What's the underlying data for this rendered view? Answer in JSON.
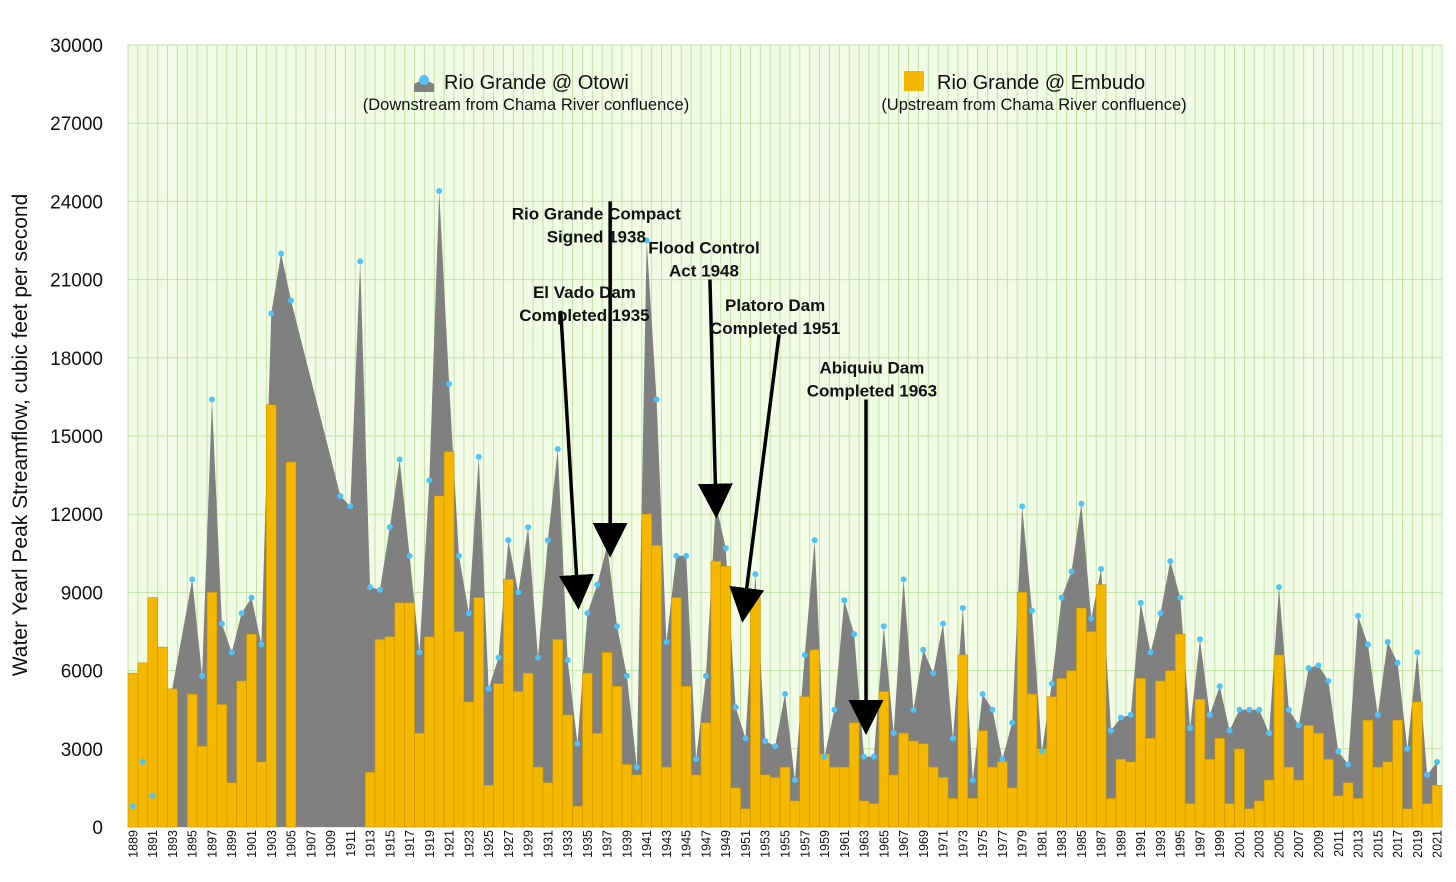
{
  "chart_data": {
    "type": "bar",
    "ylabel": "Water Yearl Peak Streamflow, cubic feet per second",
    "ylim": [
      0,
      30000
    ],
    "yticks": [
      0,
      3000,
      6000,
      9000,
      12000,
      15000,
      18000,
      21000,
      24000,
      27000,
      30000
    ],
    "x_range": [
      1889,
      2021
    ],
    "x_tick_labels": [
      "1889",
      "1891",
      "1893",
      "1895",
      "1897",
      "1899",
      "1901",
      "1903",
      "1905",
      "1907",
      "1909",
      "1911",
      "1913",
      "1915",
      "1917",
      "1919",
      "1921",
      "1923",
      "1925",
      "1927",
      "1929",
      "1931",
      "1933",
      "1935",
      "1937",
      "1939",
      "1941",
      "1943",
      "1945",
      "1947",
      "1949",
      "1951",
      "1953",
      "1955",
      "1957",
      "1959",
      "1961",
      "1963",
      "1965",
      "1967",
      "1969",
      "1971",
      "1973",
      "1975",
      "1977",
      "1979",
      "1981",
      "1983",
      "1985",
      "1987",
      "1989",
      "1991",
      "1993",
      "1995",
      "1997",
      "1999",
      "2001",
      "2003",
      "2005",
      "2007",
      "2009",
      "2011",
      "2013",
      "2015",
      "2017",
      "2019",
      "2021"
    ],
    "grid": "vertical lines at every year",
    "background": "light green",
    "legend_placement": "top",
    "series": [
      {
        "name": "Rio Grande @ Otowi",
        "subtitle": "(Downstream from Chama River confluence)",
        "type": "area",
        "color": "#808080",
        "marker_color": "#4fc3f7",
        "points": [
          [
            1889,
            800
          ],
          [
            1890,
            2500
          ],
          [
            1891,
            1200
          ],
          [
            1895,
            9500
          ],
          [
            1896,
            5800
          ],
          [
            1897,
            16400
          ],
          [
            1898,
            7800
          ],
          [
            1899,
            6700
          ],
          [
            1900,
            8200
          ],
          [
            1901,
            8800
          ],
          [
            1902,
            7000
          ],
          [
            1903,
            19700
          ],
          [
            1904,
            22000
          ],
          [
            1905,
            20200
          ],
          [
            1910,
            12700
          ],
          [
            1911,
            12300
          ],
          [
            1912,
            21700
          ],
          [
            1913,
            9200
          ],
          [
            1914,
            9100
          ],
          [
            1915,
            11500
          ],
          [
            1916,
            14100
          ],
          [
            1917,
            10400
          ],
          [
            1918,
            6700
          ],
          [
            1919,
            13300
          ],
          [
            1920,
            24400
          ],
          [
            1921,
            17000
          ],
          [
            1922,
            10400
          ],
          [
            1923,
            8200
          ],
          [
            1924,
            14200
          ],
          [
            1925,
            5300
          ],
          [
            1926,
            6500
          ],
          [
            1927,
            11000
          ],
          [
            1928,
            9000
          ],
          [
            1929,
            11500
          ],
          [
            1930,
            6500
          ],
          [
            1931,
            11000
          ],
          [
            1932,
            14500
          ],
          [
            1933,
            6400
          ],
          [
            1934,
            3200
          ],
          [
            1935,
            8200
          ],
          [
            1936,
            9300
          ],
          [
            1937,
            10800
          ],
          [
            1938,
            7700
          ],
          [
            1939,
            5800
          ],
          [
            1940,
            2300
          ],
          [
            1941,
            22500
          ],
          [
            1942,
            16400
          ],
          [
            1943,
            7100
          ],
          [
            1944,
            10400
          ],
          [
            1945,
            10400
          ],
          [
            1946,
            2600
          ],
          [
            1947,
            5800
          ],
          [
            1948,
            12400
          ],
          [
            1949,
            10700
          ],
          [
            1950,
            4600
          ],
          [
            1951,
            3400
          ],
          [
            1952,
            9700
          ],
          [
            1953,
            3300
          ],
          [
            1954,
            3100
          ],
          [
            1955,
            5100
          ],
          [
            1956,
            1800
          ],
          [
            1957,
            6600
          ],
          [
            1958,
            11000
          ],
          [
            1959,
            2700
          ],
          [
            1960,
            4500
          ],
          [
            1961,
            8700
          ],
          [
            1962,
            7400
          ],
          [
            1963,
            2700
          ],
          [
            1964,
            2700
          ],
          [
            1965,
            7700
          ],
          [
            1966,
            3600
          ],
          [
            1967,
            9500
          ],
          [
            1968,
            4500
          ],
          [
            1969,
            6800
          ],
          [
            1970,
            5900
          ],
          [
            1971,
            7800
          ],
          [
            1972,
            3400
          ],
          [
            1973,
            8400
          ],
          [
            1974,
            1800
          ],
          [
            1975,
            5100
          ],
          [
            1976,
            4500
          ],
          [
            1977,
            2600
          ],
          [
            1978,
            4000
          ],
          [
            1979,
            12300
          ],
          [
            1980,
            8300
          ],
          [
            1981,
            2900
          ],
          [
            1982,
            5500
          ],
          [
            1983,
            8800
          ],
          [
            1984,
            9800
          ],
          [
            1985,
            12400
          ],
          [
            1986,
            8000
          ],
          [
            1987,
            9900
          ],
          [
            1988,
            3700
          ],
          [
            1989,
            4200
          ],
          [
            1990,
            4300
          ],
          [
            1991,
            8600
          ],
          [
            1992,
            6700
          ],
          [
            1993,
            8200
          ],
          [
            1994,
            10200
          ],
          [
            1995,
            8800
          ],
          [
            1996,
            3800
          ],
          [
            1997,
            7200
          ],
          [
            1998,
            4300
          ],
          [
            1999,
            5400
          ],
          [
            2000,
            3700
          ],
          [
            2001,
            4500
          ],
          [
            2002,
            4500
          ],
          [
            2003,
            4500
          ],
          [
            2004,
            3600
          ],
          [
            2005,
            9200
          ],
          [
            2006,
            4500
          ],
          [
            2007,
            3900
          ],
          [
            2008,
            6100
          ],
          [
            2009,
            6200
          ],
          [
            2010,
            5600
          ],
          [
            2011,
            2900
          ],
          [
            2012,
            2400
          ],
          [
            2013,
            8100
          ],
          [
            2014,
            7000
          ],
          [
            2015,
            4300
          ],
          [
            2016,
            7100
          ],
          [
            2017,
            6300
          ],
          [
            2018,
            3000
          ],
          [
            2019,
            6700
          ],
          [
            2020,
            2000
          ],
          [
            2021,
            2500
          ]
        ]
      },
      {
        "name": "Rio Grande @ Embudo",
        "subtitle": "(Upstream from Chama River confluence)",
        "type": "bar",
        "color": "#f5b800",
        "points": [
          [
            1889,
            5900
          ],
          [
            1890,
            6300
          ],
          [
            1891,
            8800
          ],
          [
            1892,
            6900
          ],
          [
            1893,
            5300
          ],
          [
            1895,
            5100
          ],
          [
            1896,
            3100
          ],
          [
            1897,
            9000
          ],
          [
            1898,
            4700
          ],
          [
            1899,
            1700
          ],
          [
            1900,
            5600
          ],
          [
            1901,
            7400
          ],
          [
            1902,
            2500
          ],
          [
            1903,
            16200
          ],
          [
            1905,
            14000
          ],
          [
            1913,
            2100
          ],
          [
            1914,
            7200
          ],
          [
            1915,
            7300
          ],
          [
            1916,
            8600
          ],
          [
            1917,
            8600
          ],
          [
            1918,
            3600
          ],
          [
            1919,
            7300
          ],
          [
            1920,
            12700
          ],
          [
            1921,
            14400
          ],
          [
            1922,
            7500
          ],
          [
            1923,
            4800
          ],
          [
            1924,
            8800
          ],
          [
            1925,
            1600
          ],
          [
            1926,
            5500
          ],
          [
            1927,
            9500
          ],
          [
            1928,
            5200
          ],
          [
            1929,
            5900
          ],
          [
            1930,
            2300
          ],
          [
            1931,
            1700
          ],
          [
            1932,
            7200
          ],
          [
            1933,
            4300
          ],
          [
            1934,
            800
          ],
          [
            1935,
            5900
          ],
          [
            1936,
            3600
          ],
          [
            1937,
            6700
          ],
          [
            1938,
            5400
          ],
          [
            1939,
            2400
          ],
          [
            1940,
            2000
          ],
          [
            1941,
            12000
          ],
          [
            1942,
            10800
          ],
          [
            1943,
            2300
          ],
          [
            1944,
            8800
          ],
          [
            1945,
            5400
          ],
          [
            1946,
            2000
          ],
          [
            1947,
            4000
          ],
          [
            1948,
            10200
          ],
          [
            1949,
            10000
          ],
          [
            1950,
            1500
          ],
          [
            1951,
            700
          ],
          [
            1952,
            8800
          ],
          [
            1953,
            2000
          ],
          [
            1954,
            1900
          ],
          [
            1955,
            2300
          ],
          [
            1956,
            1000
          ],
          [
            1957,
            5000
          ],
          [
            1958,
            6800
          ],
          [
            1959,
            2800
          ],
          [
            1960,
            2300
          ],
          [
            1961,
            2300
          ],
          [
            1962,
            4000
          ],
          [
            1963,
            1000
          ],
          [
            1964,
            900
          ],
          [
            1965,
            5200
          ],
          [
            1966,
            2000
          ],
          [
            1967,
            3600
          ],
          [
            1968,
            3300
          ],
          [
            1969,
            3200
          ],
          [
            1970,
            2300
          ],
          [
            1971,
            1900
          ],
          [
            1972,
            1100
          ],
          [
            1973,
            6600
          ],
          [
            1974,
            1100
          ],
          [
            1975,
            3700
          ],
          [
            1976,
            2300
          ],
          [
            1977,
            2500
          ],
          [
            1978,
            1500
          ],
          [
            1979,
            9000
          ],
          [
            1980,
            5100
          ],
          [
            1981,
            3000
          ],
          [
            1982,
            5000
          ],
          [
            1983,
            5700
          ],
          [
            1984,
            6000
          ],
          [
            1985,
            8400
          ],
          [
            1986,
            7500
          ],
          [
            1987,
            9300
          ],
          [
            1988,
            1100
          ],
          [
            1989,
            2600
          ],
          [
            1990,
            2500
          ],
          [
            1991,
            5700
          ],
          [
            1992,
            3400
          ],
          [
            1993,
            5600
          ],
          [
            1994,
            6000
          ],
          [
            1995,
            7400
          ],
          [
            1996,
            900
          ],
          [
            1997,
            4900
          ],
          [
            1998,
            2600
          ],
          [
            1999,
            3400
          ],
          [
            2000,
            900
          ],
          [
            2001,
            3000
          ],
          [
            2002,
            700
          ],
          [
            2003,
            1000
          ],
          [
            2004,
            1800
          ],
          [
            2005,
            6600
          ],
          [
            2006,
            2300
          ],
          [
            2007,
            1800
          ],
          [
            2008,
            3900
          ],
          [
            2009,
            3600
          ],
          [
            2010,
            2600
          ],
          [
            2011,
            1200
          ],
          [
            2012,
            1700
          ],
          [
            2013,
            1100
          ],
          [
            2014,
            4100
          ],
          [
            2015,
            2300
          ],
          [
            2016,
            2500
          ],
          [
            2017,
            4100
          ],
          [
            2018,
            700
          ],
          [
            2019,
            4800
          ],
          [
            2020,
            900
          ],
          [
            2021,
            1600
          ]
        ]
      }
    ],
    "annotations": [
      {
        "line1": "El Vado Dam",
        "line2": "Completed 1935",
        "text_year": 1934.7,
        "text_y": 20300,
        "arrow_from": [
          1932.3,
          19800
        ],
        "arrow_to": [
          1934.0,
          9000
        ]
      },
      {
        "line1": "Rio Grande Compact",
        "line2": "Signed 1938",
        "text_year": 1935.9,
        "text_y": 23300,
        "arrow_from": [
          1937.3,
          24000
        ],
        "arrow_to": [
          1937.3,
          11000
        ]
      },
      {
        "line1": "Flood Control",
        "line2": "Act 1948",
        "text_year": 1946.8,
        "text_y": 22000,
        "arrow_from": [
          1947.4,
          21000
        ],
        "arrow_to": [
          1948.0,
          12500
        ]
      },
      {
        "line1": "Platoro Dam",
        "line2": "Completed 1951",
        "text_year": 1954.0,
        "text_y": 19800,
        "arrow_from": [
          1954.4,
          18900
        ],
        "arrow_to": [
          1950.9,
          8500
        ]
      },
      {
        "line1": "Abiquiu Dam",
        "line2": "Completed 1963",
        "text_year": 1963.8,
        "text_y": 17400,
        "arrow_from": [
          1963.2,
          16400
        ],
        "arrow_to": [
          1963.2,
          4200
        ]
      }
    ]
  }
}
